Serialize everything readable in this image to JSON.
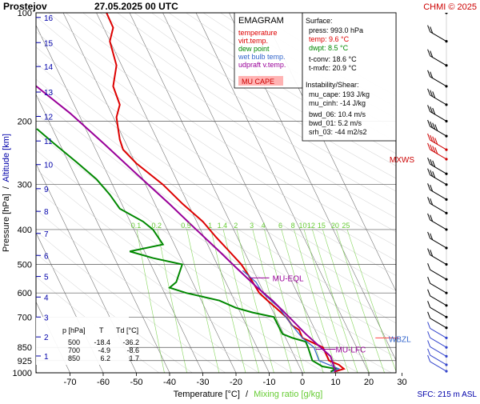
{
  "header": {
    "station": "Prostejov",
    "datetime": "27.05.2025 00 UTC",
    "credit": "CHMI © 2025"
  },
  "legend": {
    "title": "EMAGRAM",
    "items": [
      {
        "label": "temperature",
        "color": "#dd0000"
      },
      {
        "label": "virt.temp.",
        "color": "#dd0000"
      },
      {
        "label": "dew point",
        "color": "#008800"
      },
      {
        "label": "wet bulb temp.",
        "color": "#3366cc"
      },
      {
        "label": "udpraft v.temp.",
        "color": "#990099"
      }
    ],
    "mu_cape_badge": "MU CAPE"
  },
  "info": {
    "surface_title": "Surface:",
    "press": "press: 993.0 hPa",
    "temp": "temp: 9.6 °C",
    "dwpt": "dwpt: 8.5 °C",
    "tconv": "t-conv: 18.6 °C",
    "tmxfc": "t-mxfc: 20.9 °C",
    "instability_title": "Instability/Shear:",
    "mu_cape": "mu_cape: 193 J/kg",
    "mu_cinh": "mu_cinh: -14 J/kg",
    "bwd_06": "bwd_06: 10.4 m/s",
    "bwd_01": "bwd_01: 5.2 m/s",
    "srh_03": "srh_03: -44 m2/s2"
  },
  "annotations": {
    "mu_eql": "MU-EQL",
    "mu_lfc": "MU-LFC",
    "wbzl": "WBZL",
    "mxws": "MXWS"
  },
  "colors": {
    "temperature": "#dd0000",
    "dewpoint": "#008800",
    "wetbulb": "#3366cc",
    "parcel": "#990099",
    "mixing": "#66cc33",
    "mxws": "#cc0000",
    "altitude": "#0000aa"
  },
  "table": {
    "headers": [
      "p [hPa]",
      "T",
      "Td [°C]"
    ],
    "rows": [
      [
        "500",
        "-18.4",
        "-36.2"
      ],
      [
        "700",
        "-4.9",
        "-8.6"
      ],
      [
        "850",
        "6.2",
        "1.7"
      ]
    ]
  },
  "footer": {
    "sfc": "SFC: 215 m ASL"
  },
  "chart_data": {
    "type": "line",
    "title": "EMAGRAM",
    "xlabel_part1": "Temperature [°C]",
    "xlabel_sep": "/",
    "xlabel_part2": "Mixing ratio [g/kg]",
    "ylabel_part1": "Pressure [hPa]",
    "ylabel_sep": "/",
    "ylabel_part2": "Altitude [km]",
    "xlim": [
      -80,
      40
    ],
    "ylim": [
      1000,
      100
    ],
    "x_ticks": [
      -70,
      -60,
      -50,
      -40,
      -30,
      -20,
      -10,
      0,
      10,
      20,
      30
    ],
    "p_ticks": [
      100,
      200,
      300,
      400,
      500,
      600,
      700,
      850,
      925,
      1000
    ],
    "altitude_ticks": [
      {
        "km": 1,
        "p": 898
      },
      {
        "km": 2,
        "p": 795
      },
      {
        "km": 3,
        "p": 700
      },
      {
        "km": 4,
        "p": 616
      },
      {
        "km": 5,
        "p": 540
      },
      {
        "km": 6,
        "p": 472
      },
      {
        "km": 7,
        "p": 410
      },
      {
        "km": 8,
        "p": 356
      },
      {
        "km": 9,
        "p": 308
      },
      {
        "km": 10,
        "p": 264
      },
      {
        "km": 11,
        "p": 227
      },
      {
        "km": 12,
        "p": 194
      },
      {
        "km": 13,
        "p": 166
      },
      {
        "km": 14,
        "p": 141
      },
      {
        "km": 15,
        "p": 121
      },
      {
        "km": 16,
        "p": 103
      }
    ],
    "mixing_ratio_labels": [
      "0.1",
      "0.2",
      "0.5",
      "1",
      "1.4",
      "2",
      "3",
      "4",
      "6",
      "8",
      "10",
      "12",
      "15",
      "20",
      "25"
    ],
    "mixing_ratio_label_p": 390,
    "series": [
      {
        "name": "temperature",
        "points": [
          [
            9.6,
            993
          ],
          [
            12.5,
            975
          ],
          [
            11,
            950
          ],
          [
            8,
            925
          ],
          [
            6.2,
            850
          ],
          [
            0,
            800
          ],
          [
            -1,
            760
          ],
          [
            -3,
            740
          ],
          [
            -4.9,
            700
          ],
          [
            -8,
            660
          ],
          [
            -10.5,
            630
          ],
          [
            -13,
            600
          ],
          [
            -16,
            540
          ],
          [
            -18.4,
            500
          ],
          [
            -22,
            460
          ],
          [
            -26,
            420
          ],
          [
            -30,
            380
          ],
          [
            -36,
            340
          ],
          [
            -42,
            300
          ],
          [
            -50,
            262
          ],
          [
            -54,
            240
          ],
          [
            -55,
            225
          ],
          [
            -55.5,
            210
          ],
          [
            -56,
            195
          ],
          [
            -55,
            180
          ],
          [
            -57,
            160
          ],
          [
            -56,
            140
          ],
          [
            -58,
            120
          ],
          [
            -57,
            110
          ],
          [
            -59,
            100
          ]
        ]
      },
      {
        "name": "dew point",
        "points": [
          [
            8.5,
            993
          ],
          [
            10,
            975
          ],
          [
            6,
            960
          ],
          [
            3,
            925
          ],
          [
            1.7,
            850
          ],
          [
            1,
            820
          ],
          [
            -3,
            800
          ],
          [
            -6,
            780
          ],
          [
            -8.6,
            700
          ],
          [
            -15,
            680
          ],
          [
            -20,
            660
          ],
          [
            -25,
            630
          ],
          [
            -35,
            600
          ],
          [
            -40,
            580
          ],
          [
            -38,
            560
          ],
          [
            -36.2,
            500
          ],
          [
            -45,
            480
          ],
          [
            -52,
            460
          ],
          [
            -42,
            440
          ],
          [
            -45,
            400
          ],
          [
            -48,
            380
          ],
          [
            -55,
            350
          ],
          [
            -58,
            320
          ],
          [
            -62,
            290
          ],
          [
            -68,
            260
          ],
          [
            -75,
            230
          ],
          [
            -80,
            210
          ]
        ]
      },
      {
        "name": "wet bulb temp.",
        "points": [
          [
            9,
            993
          ],
          [
            11,
            975
          ],
          [
            8,
            950
          ],
          [
            5,
            925
          ],
          [
            3.5,
            850
          ],
          [
            0,
            800
          ],
          [
            -2,
            760
          ],
          [
            -5,
            700
          ],
          [
            -7,
            660
          ],
          [
            -12,
            600
          ],
          [
            -14,
            560
          ],
          [
            -18,
            520
          ]
        ]
      },
      {
        "name": "udpraft v.temp.",
        "points": [
          [
            10,
            993
          ],
          [
            8.5,
            900
          ],
          [
            5.5,
            850
          ],
          [
            1,
            780
          ],
          [
            -4,
            700
          ],
          [
            -9,
            630
          ],
          [
            -14,
            575
          ],
          [
            -20,
            510
          ],
          [
            -25,
            460
          ],
          [
            -32,
            400
          ],
          [
            -40,
            340
          ],
          [
            -50,
            280
          ],
          [
            -60,
            230
          ],
          [
            -70,
            190
          ],
          [
            -82,
            155
          ]
        ]
      }
    ]
  }
}
